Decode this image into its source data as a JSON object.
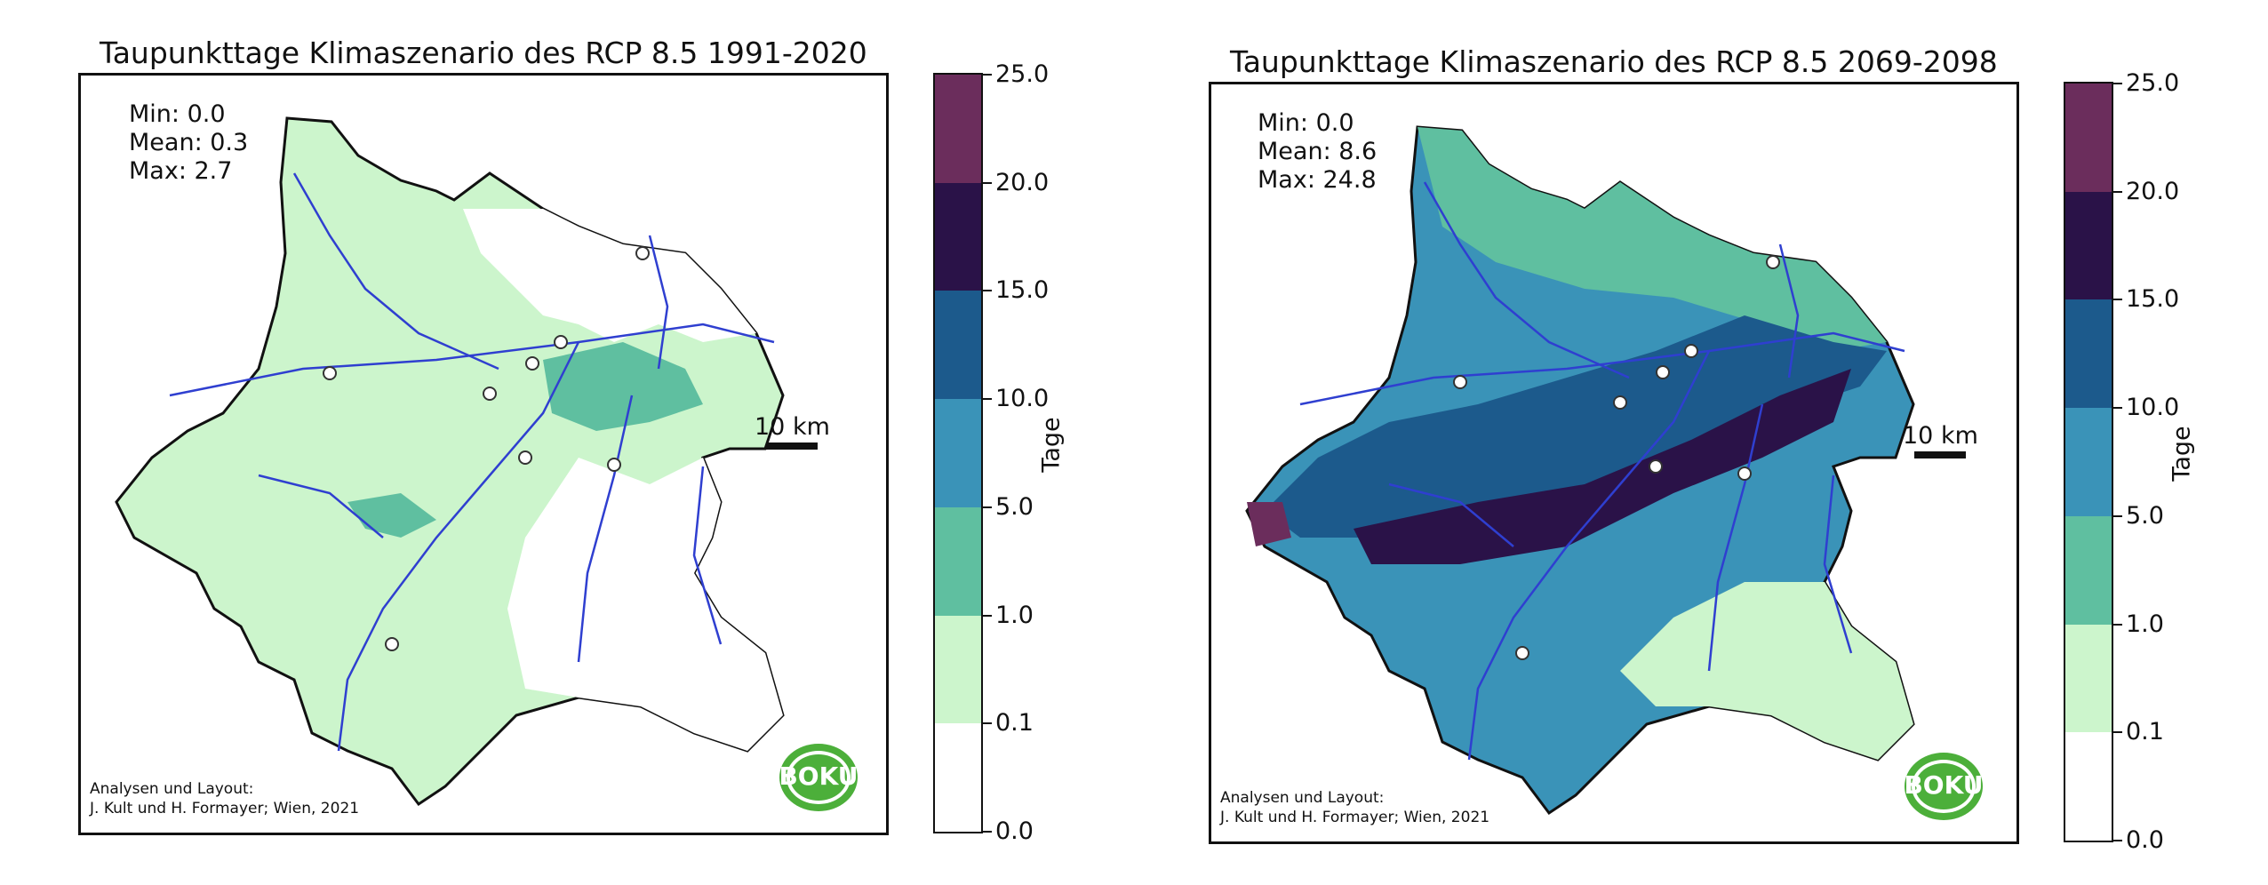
{
  "maps": [
    {
      "title": "Taupunkttage Klimaszenario des RCP 8.5 1991-2020",
      "stats": {
        "min": "Min: 0.0",
        "mean": "Mean: 0.3",
        "max": "Max: 2.7"
      },
      "credit_line1": "Analysen und Layout:",
      "credit_line2": "J. Kult und H. Formayer; Wien, 2021",
      "scale_label": "10 km",
      "logo_text": "BOKU",
      "colorbar_label": "Tage",
      "mean_class": "low"
    },
    {
      "title": "Taupunkttage Klimaszenario des RCP 8.5 2069-2098",
      "stats": {
        "min": "Min: 0.0",
        "mean": "Mean: 8.6",
        "max": "Max: 24.8"
      },
      "credit_line1": "Analysen und Layout:",
      "credit_line2": "J. Kult und H. Formayer; Wien, 2021",
      "scale_label": "10 km",
      "logo_text": "BOKU",
      "colorbar_label": "Tage",
      "mean_class": "high"
    }
  ],
  "colorbar_ticks": [
    "0.0",
    "0.1",
    "1.0",
    "5.0",
    "10.0",
    "15.0",
    "20.0",
    "25.0"
  ],
  "colorbar_colors": [
    "#ffffff",
    "#ccf5cc",
    "#5fbfa0",
    "#3a93b8",
    "#1c5a8c",
    "#2a1248",
    "#6b2d5c"
  ],
  "colors": {
    "river": "#2f3fd0",
    "border": "#111111",
    "logo_green": "#4caf3a"
  }
}
